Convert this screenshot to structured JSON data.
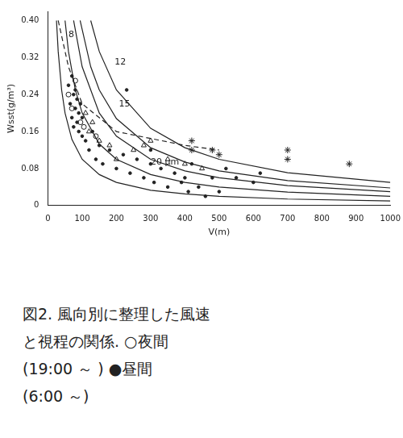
{
  "chart_data": {
    "type": "scatter",
    "x_label": "V(m)",
    "y_label": "Wsst(g/m³)",
    "xlim": [
      0,
      1000
    ],
    "xticks": [
      0,
      100,
      200,
      300,
      400,
      500,
      600,
      700,
      800,
      900,
      1000
    ],
    "ylim": [
      0,
      0.42
    ],
    "yticks": [
      0,
      0.08,
      0.16,
      0.24,
      0.32,
      {
        "value": 0.4,
        "label": "0.40"
      }
    ],
    "grid": false,
    "annotations": [
      {
        "text": "8",
        "x": 60,
        "y": 0.37
      },
      {
        "text": "12",
        "x": 195,
        "y": 0.31
      },
      {
        "text": "15",
        "x": 207,
        "y": 0.22
      },
      {
        "text": "20 μm",
        "x": 300,
        "y": 0.094
      }
    ],
    "caption": [
      "図2. 風向別に整理した風速",
      "と視程の関係. ○夜間",
      "(19:00 ～ ) ●昼間",
      "(6:00 ～)"
    ],
    "series": [
      {
        "type": "line",
        "color": "#222222",
        "marker": "none",
        "line_style": "solid",
        "x": [
          25,
          30,
          40,
          50,
          70,
          100,
          150,
          200,
          300,
          400,
          500,
          700,
          1000
        ],
        "values": [
          0.4,
          0.333,
          0.25,
          0.2,
          0.143,
          0.1,
          0.067,
          0.05,
          0.033,
          0.025,
          0.02,
          0.014,
          0.01
        ]
      },
      {
        "type": "line",
        "color": "#222222",
        "marker": "none",
        "line_style": "solid",
        "x": [
          50,
          60,
          80,
          100,
          150,
          200,
          300,
          400,
          500,
          700,
          1000
        ],
        "values": [
          0.4,
          0.333,
          0.25,
          0.2,
          0.133,
          0.1,
          0.067,
          0.05,
          0.04,
          0.029,
          0.02
        ]
      },
      {
        "type": "line",
        "color": "#222222",
        "marker": "none",
        "line_style": "solid",
        "x": [
          75,
          100,
          150,
          200,
          300,
          400,
          500,
          700,
          1000
        ],
        "values": [
          0.4,
          0.3,
          0.2,
          0.15,
          0.1,
          0.075,
          0.06,
          0.043,
          0.03
        ]
      },
      {
        "type": "line",
        "color": "#222222",
        "marker": "none",
        "line_style": "solid",
        "x": [
          94,
          125,
          150,
          200,
          300,
          400,
          500,
          700,
          1000
        ],
        "values": [
          0.4,
          0.3,
          0.25,
          0.188,
          0.125,
          0.094,
          0.075,
          0.054,
          0.038
        ]
      },
      {
        "type": "line",
        "color": "#222222",
        "marker": "none",
        "line_style": "solid",
        "x": [
          125,
          150,
          200,
          300,
          400,
          500,
          700,
          1000
        ],
        "values": [
          0.4,
          0.333,
          0.25,
          0.167,
          0.125,
          0.1,
          0.071,
          0.05
        ]
      },
      {
        "type": "line",
        "color": "#222222",
        "marker": "none",
        "line_style": "dashed",
        "x": [
          30,
          60,
          100,
          200,
          300,
          400,
          500
        ],
        "values": [
          0.4,
          0.3,
          0.22,
          0.16,
          0.145,
          0.13,
          0.12
        ]
      },
      {
        "type": "scatter",
        "color": "#222222",
        "marker": "dot",
        "line_style": "none",
        "x": [
          60,
          65,
          70,
          70,
          75,
          75,
          80,
          80,
          85,
          85,
          90,
          90,
          95,
          100,
          100,
          110,
          120,
          130,
          140,
          150,
          160,
          180,
          200,
          220,
          240,
          260,
          280,
          300,
          310,
          330,
          350,
          370,
          390,
          410,
          420,
          440,
          460,
          480,
          500,
          520,
          550,
          600,
          620,
          230,
          300,
          400
        ],
        "values": [
          0.26,
          0.22,
          0.28,
          0.19,
          0.24,
          0.17,
          0.21,
          0.25,
          0.18,
          0.23,
          0.2,
          0.16,
          0.22,
          0.19,
          0.15,
          0.14,
          0.12,
          0.16,
          0.1,
          0.13,
          0.09,
          0.12,
          0.08,
          0.11,
          0.07,
          0.1,
          0.06,
          0.09,
          0.05,
          0.08,
          0.04,
          0.07,
          0.05,
          0.03,
          0.09,
          0.04,
          0.02,
          0.06,
          0.03,
          0.08,
          0.06,
          0.05,
          0.07,
          0.25,
          0.12,
          0.06
        ]
      },
      {
        "type": "scatter",
        "color": "#222222",
        "marker": "circle",
        "line_style": "none",
        "x": [
          60,
          70,
          80,
          95,
          105,
          140
        ],
        "values": [
          0.24,
          0.21,
          0.27,
          0.18,
          0.17,
          0.15
        ]
      },
      {
        "type": "scatter",
        "color": "#222222",
        "marker": "triangle",
        "line_style": "none",
        "x": [
          110,
          120,
          130,
          150,
          180,
          200,
          250,
          280,
          300,
          350,
          400,
          450
        ],
        "values": [
          0.2,
          0.16,
          0.18,
          0.14,
          0.13,
          0.1,
          0.12,
          0.13,
          0.14,
          0.1,
          0.09,
          0.08
        ]
      },
      {
        "type": "scatter",
        "color": "#222222",
        "marker": "star",
        "line_style": "none",
        "x": [
          420,
          420,
          480,
          500,
          700,
          700,
          880
        ],
        "values": [
          0.12,
          0.14,
          0.12,
          0.11,
          0.12,
          0.1,
          0.09
        ]
      }
    ]
  }
}
